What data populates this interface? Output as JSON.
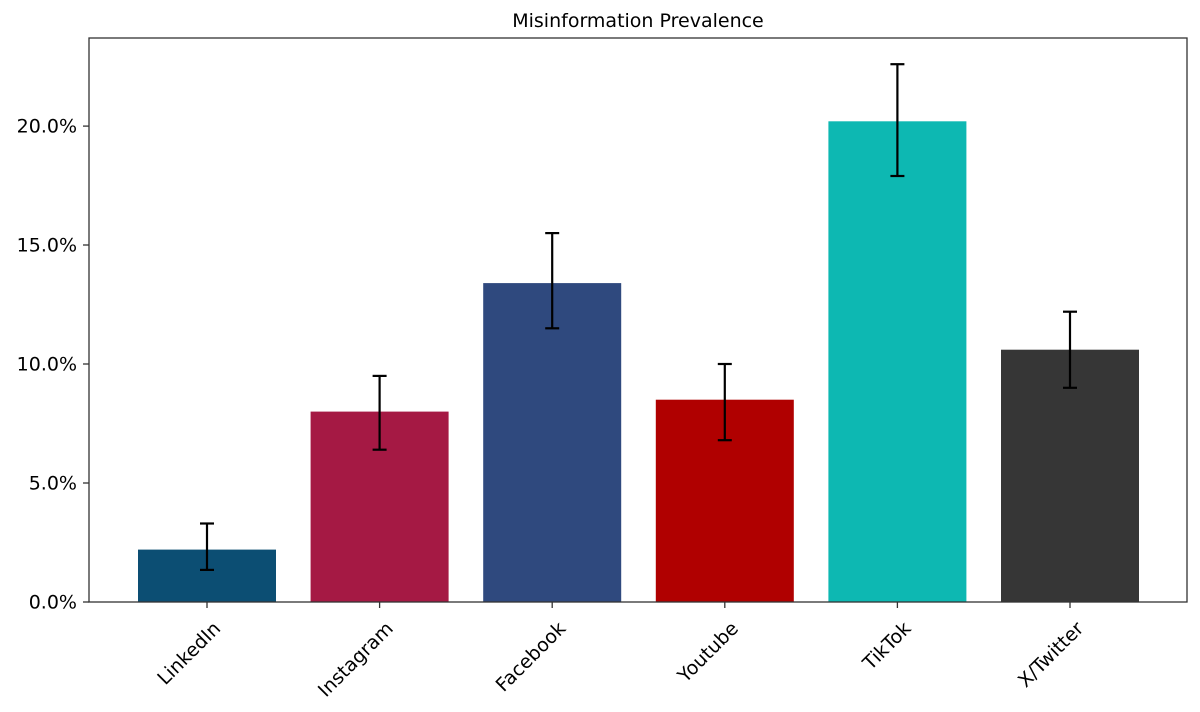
{
  "chart_data": {
    "type": "bar",
    "title": "Misinformation Prevalence",
    "xlabel": "",
    "ylabel": "",
    "categories": [
      "LinkedIn",
      "Instagram",
      "Facebook",
      "Youtube",
      "TikTok",
      "X/Twitter"
    ],
    "values": [
      2.2,
      8.0,
      13.4,
      8.5,
      20.2,
      10.6
    ],
    "error_low": [
      1.35,
      6.4,
      11.5,
      6.8,
      17.9,
      9.0
    ],
    "error_high": [
      3.3,
      9.5,
      15.5,
      10.0,
      22.6,
      12.2
    ],
    "value_unit": "percent",
    "colors": [
      "#0c4e73",
      "#a51944",
      "#2f497e",
      "#b00000",
      "#0db8b2",
      "#363636"
    ],
    "error_color": "#000000",
    "ylim": [
      0,
      23.7
    ],
    "yticks": [
      0,
      5,
      10,
      15,
      20
    ],
    "ytick_labels": [
      "0.0%",
      "5.0%",
      "10.0%",
      "15.0%",
      "20.0%"
    ],
    "grid": false,
    "legend": "none"
  }
}
